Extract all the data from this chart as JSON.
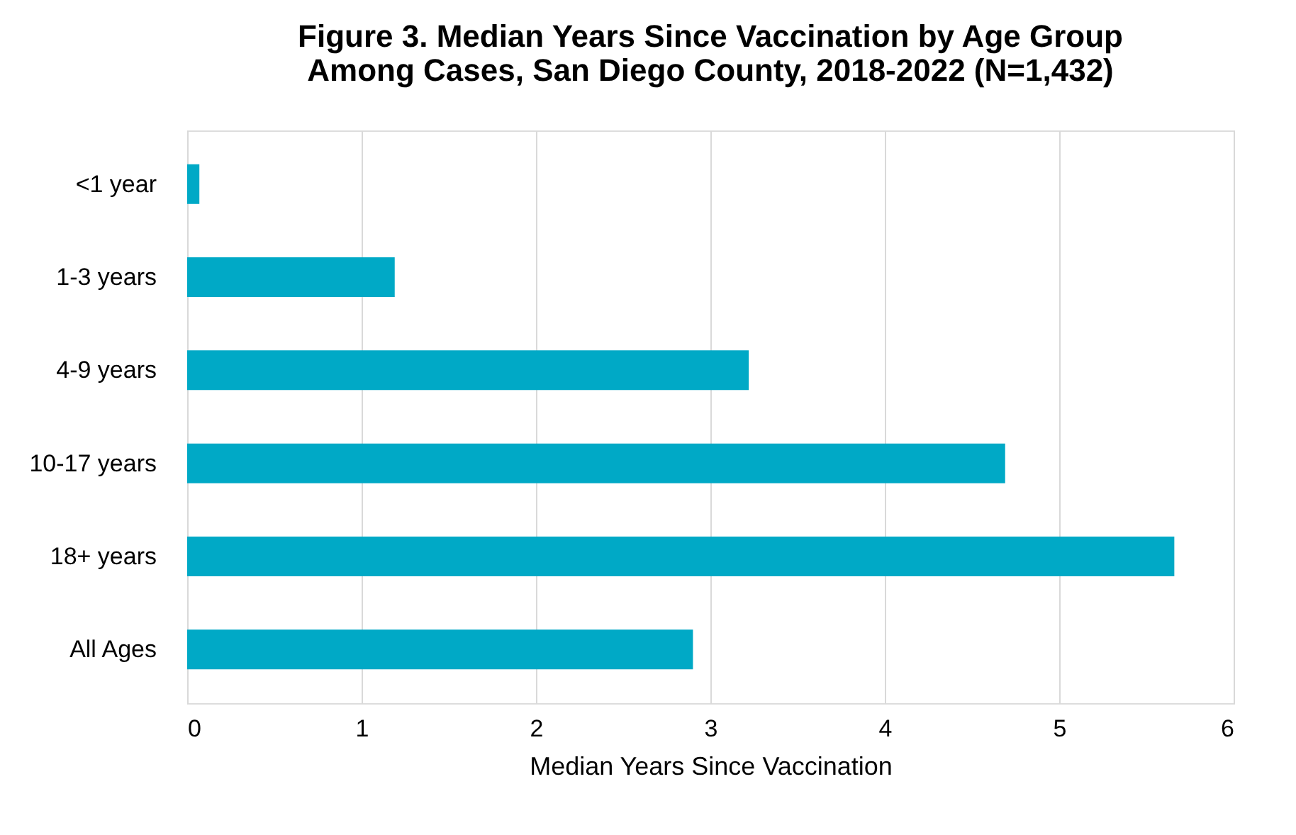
{
  "chart_data": {
    "type": "bar",
    "orientation": "horizontal",
    "title": "Figure 3. Median Years Since Vaccination by Age Group\nAmong Cases, San Diego County, 2018-2022 (N=1,432)",
    "xlabel": "Median Years Since Vaccination",
    "categories": [
      "<1 year",
      "1-3 years",
      "4-9 years",
      "10-17 years",
      "18+ years",
      "All Ages"
    ],
    "values": [
      0.07,
      1.19,
      3.22,
      4.69,
      5.66,
      2.9
    ],
    "color": "#00a9c6",
    "xlim": [
      0,
      6
    ],
    "xticks": [
      0,
      1,
      2,
      3,
      4,
      5,
      6
    ],
    "grid": "x"
  }
}
